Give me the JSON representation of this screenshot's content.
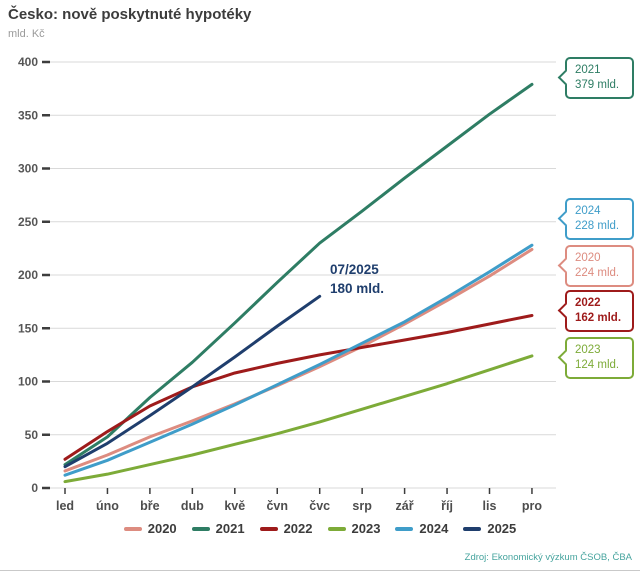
{
  "header": {
    "title": "Česko: nově poskytnuté hypotéky",
    "unit": "mld. Kč"
  },
  "chart_data": {
    "type": "line",
    "categories": [
      "led",
      "úno",
      "bře",
      "dub",
      "kvě",
      "čvn",
      "čvc",
      "srp",
      "zář",
      "říj",
      "lis",
      "pro"
    ],
    "ylim": [
      0,
      400
    ],
    "ytick_step": 50,
    "grid": true,
    "legend_position": "bottom",
    "series": [
      {
        "name": "2020",
        "color": "#dd8c80",
        "values": [
          16,
          31,
          48,
          63,
          79,
          96,
          114,
          133,
          154,
          176,
          199,
          224
        ]
      },
      {
        "name": "2021",
        "color": "#2e7d64",
        "values": [
          22,
          48,
          85,
          118,
          155,
          193,
          230,
          260,
          291,
          321,
          351,
          379
        ]
      },
      {
        "name": "2022",
        "color": "#9e1b1b",
        "values": [
          27,
          53,
          77,
          95,
          108,
          117,
          125,
          132,
          139,
          146,
          154,
          162
        ]
      },
      {
        "name": "2023",
        "color": "#7dab38",
        "values": [
          6,
          13,
          22,
          31,
          41,
          51,
          62,
          74,
          86,
          98,
          111,
          124
        ]
      },
      {
        "name": "2024",
        "color": "#3f9dc9",
        "values": [
          12,
          26,
          43,
          60,
          78,
          97,
          116,
          136,
          156,
          179,
          203,
          228
        ]
      },
      {
        "name": "2025",
        "color": "#1f3e6d",
        "values": [
          20,
          42,
          68,
          95,
          123,
          152,
          180
        ]
      }
    ]
  },
  "annotation": {
    "line1": "07/2025",
    "line2": "180 mld.",
    "color": "#1f3e6d"
  },
  "callouts": [
    {
      "year": "2021",
      "value": "379 mld.",
      "color": "#2e7d64",
      "emphasis": false
    },
    {
      "year": "2024",
      "value": "228 mld.",
      "color": "#3f9dc9",
      "emphasis": false
    },
    {
      "year": "2020",
      "value": "224 mld.",
      "color": "#dd8c80",
      "emphasis": false
    },
    {
      "year": "2022",
      "value": "162 mld.",
      "color": "#9e1b1b",
      "emphasis": true
    },
    {
      "year": "2023",
      "value": "124 mld.",
      "color": "#7dab38",
      "emphasis": false
    }
  ],
  "source": "Zdroj: Ekonomický výzkum ČSOB, ČBA"
}
